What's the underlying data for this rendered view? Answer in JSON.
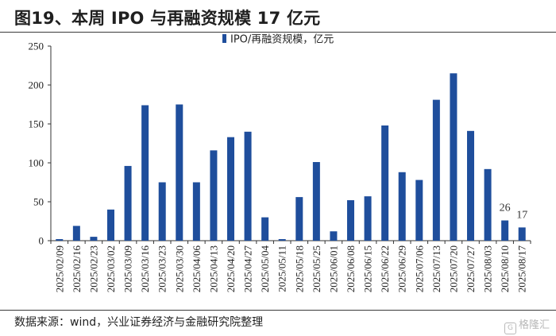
{
  "header": {
    "title": "图19、本周 IPO 与再融资规模 17 亿元"
  },
  "footer": {
    "source": "数据来源：wind，兴业证券经济与金融研究院整理",
    "watermark": "格隆汇"
  },
  "colors": {
    "bar": "#1f4e9c",
    "axis": "#333333"
  },
  "chart_data": {
    "type": "bar",
    "title": "",
    "xlabel": "",
    "ylabel": "",
    "ylim": [
      0,
      250
    ],
    "yticks": [
      0,
      50,
      100,
      150,
      200,
      250
    ],
    "legend": {
      "position": "top-center"
    },
    "grid": false,
    "categories": [
      "2025/02/09",
      "2025/02/16",
      "2025/02/23",
      "2025/03/02",
      "2025/03/09",
      "2025/03/16",
      "2025/03/23",
      "2025/03/30",
      "2025/04/06",
      "2025/04/13",
      "2025/04/20",
      "2025/04/27",
      "2025/05/04",
      "2025/05/11",
      "2025/05/18",
      "2025/05/25",
      "2025/06/01",
      "2025/06/08",
      "2025/06/15",
      "2025/06/22",
      "2025/06/29",
      "2025/07/06",
      "2025/07/13",
      "2025/07/20",
      "2025/07/27",
      "2025/08/03",
      "2025/08/10",
      "2025/08/17"
    ],
    "series": [
      {
        "name": "IPO/再融资规模，亿元",
        "values": [
          2,
          19,
          5,
          40,
          96,
          174,
          75,
          175,
          75,
          116,
          133,
          140,
          30,
          2,
          56,
          101,
          12,
          52,
          57,
          148,
          88,
          78,
          181,
          215,
          141,
          92,
          26,
          17
        ]
      }
    ],
    "data_labels": [
      {
        "index": 26,
        "text": "26"
      },
      {
        "index": 27,
        "text": "17"
      }
    ]
  }
}
